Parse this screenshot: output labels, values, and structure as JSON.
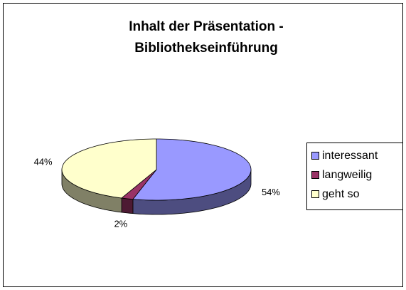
{
  "chart_data": {
    "type": "pie3d",
    "title": [
      "Inhalt der Präsentation -",
      "Bibliothekseinführung"
    ],
    "categories": [
      "interessant",
      "langweilig",
      "geht so"
    ],
    "values": [
      54,
      2,
      44
    ],
    "value_labels": [
      "54%",
      "2%",
      "44%"
    ],
    "colors": [
      "#9999ff",
      "#993366",
      "#ffffcc"
    ],
    "legend": "right"
  }
}
